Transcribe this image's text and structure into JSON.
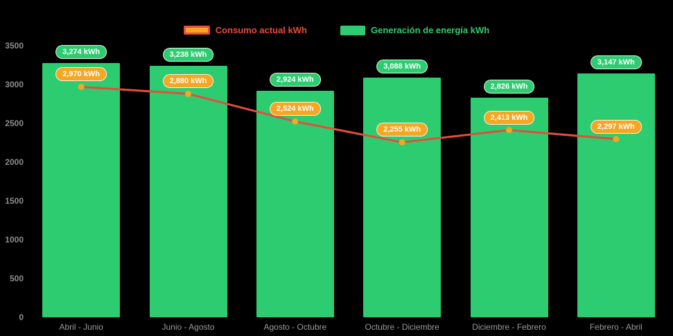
{
  "chart_data": {
    "type": "bar",
    "title": "",
    "categories": [
      "Abril - Junio",
      "Junio - Agosto",
      "Agosto - Octubre",
      "Octubre - Diciembre",
      "Diciembre - Febrero",
      "Febrero - Abril"
    ],
    "series": [
      {
        "name": "Consumo actual kWh",
        "type": "line",
        "color": "#e74c3c",
        "marker_color": "#f5a623",
        "values": [
          2970,
          2880,
          2524,
          2255,
          2413,
          2297
        ],
        "labels": [
          "2,970 kWh",
          "2,880 kWh",
          "2,524 kWh",
          "2,255 kWh",
          "2,413 kWh",
          "2,297 kWh"
        ]
      },
      {
        "name": "Generación de energía kWh",
        "type": "bar",
        "color": "#2ecc71",
        "values": [
          3274,
          3238,
          2924,
          3088,
          2826,
          3147
        ],
        "labels": [
          "3,274 kWh",
          "3,238 kWh",
          "2,924 kWh",
          "3,088 kWh",
          "2,826 kWh",
          "3,147 kWh"
        ]
      }
    ],
    "ylim": [
      0,
      3500
    ],
    "yticks": [
      "0",
      "500",
      "1000",
      "1500",
      "2000",
      "2500",
      "3000",
      "3500"
    ],
    "legend_position": "top",
    "grid": false,
    "background": "#000000"
  }
}
